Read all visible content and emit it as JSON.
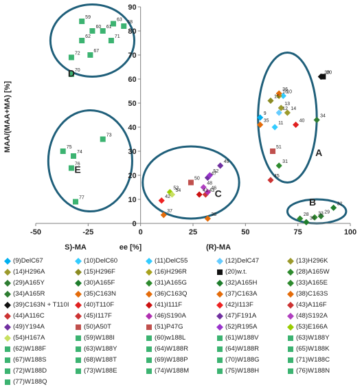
{
  "chart_data": {
    "type": "scatter",
    "title": "",
    "ylabel": "MAA/(MAA+MA) [%]",
    "xlabel_parts": [
      "S)-MA",
      "ee [%]",
      "(R)-MA"
    ],
    "xlim": [
      -50,
      100
    ],
    "ylim": [
      0,
      90
    ],
    "xticks": [
      -50,
      -25,
      0,
      25,
      50,
      75,
      100
    ],
    "yticks": [
      0,
      10,
      20,
      30,
      40,
      50,
      60,
      70,
      80,
      90
    ],
    "grid": false,
    "group_labels": [
      {
        "label": "A",
        "x": 85,
        "y": 28
      },
      {
        "label": "B",
        "x": 82,
        "y": 7.5
      },
      {
        "label": "C",
        "x": 37,
        "y": 11
      },
      {
        "label": "D",
        "x": -33,
        "y": 61
      },
      {
        "label": "E",
        "x": -30,
        "y": 21
      }
    ],
    "ellipses": [
      {
        "cx": 70,
        "cy": 44,
        "rx": 14,
        "ry": 27
      },
      {
        "cx": 84,
        "cy": 5,
        "rx": 14,
        "ry": 5
      },
      {
        "cx": 24,
        "cy": 17,
        "rx": 23,
        "ry": 15
      },
      {
        "cx": -23,
        "cy": 76,
        "rx": 20,
        "ry": 15
      },
      {
        "cx": -24,
        "cy": 26,
        "rx": 20,
        "ry": 21
      }
    ],
    "points": [
      {
        "id": "9",
        "x": 57,
        "y": 44,
        "shape": "diamond",
        "color": "#00b0f0"
      },
      {
        "id": "10",
        "x": 68,
        "y": 53,
        "shape": "diamond",
        "color": "#33ccff"
      },
      {
        "id": "11",
        "x": 64,
        "y": 40,
        "shape": "diamond",
        "color": "#33ccff"
      },
      {
        "id": "12",
        "x": 66,
        "y": 46,
        "shape": "diamond",
        "color": "#66ccff"
      },
      {
        "id": "13",
        "x": 67,
        "y": 48,
        "shape": "diamond",
        "color": "#9c9a2c"
      },
      {
        "id": "14",
        "x": 70,
        "y": 46,
        "shape": "diamond",
        "color": "#9c9a2c"
      },
      {
        "id": "15",
        "x": 62,
        "y": 51,
        "shape": "diamond",
        "color": "#8b8b22"
      },
      {
        "id": "16",
        "x": 66,
        "y": 53,
        "shape": "diamond",
        "color": "#a8a21e"
      },
      {
        "id": "20",
        "x": 87,
        "y": 61,
        "shape": "square",
        "color": "#111111"
      },
      {
        "id": "28",
        "x": 76,
        "y": 2,
        "shape": "diamond",
        "color": "#2e8b2e"
      },
      {
        "id": "29",
        "x": 86,
        "y": 3,
        "shape": "diamond",
        "color": "#2e7d32"
      },
      {
        "id": "30",
        "x": 79,
        "y": 0.5,
        "shape": "diamond",
        "color": "#1e7d2c"
      },
      {
        "id": "31",
        "x": 66,
        "y": 24,
        "shape": "diamond",
        "color": "#2e8b2e"
      },
      {
        "id": "32",
        "x": 92,
        "y": 6.5,
        "shape": "diamond",
        "color": "#1e7d2c"
      },
      {
        "id": "33",
        "x": 83,
        "y": 2.5,
        "shape": "diamond",
        "color": "#2e8b2e"
      },
      {
        "id": "34",
        "x": 84,
        "y": 43,
        "shape": "diamond",
        "color": "#2e7d32"
      },
      {
        "id": "35",
        "x": 57,
        "y": 41,
        "shape": "diamond",
        "color": "#e46c0a"
      },
      {
        "id": "36",
        "x": 66,
        "y": 54,
        "shape": "diamond",
        "color": "#e46c0a"
      },
      {
        "id": "37",
        "x": 11,
        "y": 3.5,
        "shape": "diamond",
        "color": "#e46c0a"
      },
      {
        "id": "38",
        "x": 32,
        "y": 2,
        "shape": "diamond",
        "color": "#e46c0a"
      },
      {
        "id": "39",
        "x": 86,
        "y": 61,
        "shape": "diamond",
        "color": "#111111"
      },
      {
        "id": "40",
        "x": 74,
        "y": 41,
        "shape": "diamond",
        "color": "#e02020"
      },
      {
        "id": "41",
        "x": 28,
        "y": 12,
        "shape": "diamond",
        "color": "#cc1111"
      },
      {
        "id": "42",
        "x": 10,
        "y": 9.5,
        "shape": "diamond",
        "color": "#ee2222"
      },
      {
        "id": "43",
        "x": 31,
        "y": 12,
        "shape": "diamond",
        "color": "#cc3333"
      },
      {
        "id": "45",
        "x": 62,
        "y": 18,
        "shape": "diamond",
        "color": "#cc3333"
      },
      {
        "id": "46",
        "x": 32,
        "y": 13,
        "shape": "diamond",
        "color": "#b02fb0"
      },
      {
        "id": "47",
        "x": 32,
        "y": 19,
        "shape": "diamond",
        "color": "#7030a0"
      },
      {
        "id": "48",
        "x": 30,
        "y": 15,
        "shape": "diamond",
        "color": "#b040c0"
      },
      {
        "id": "49",
        "x": 38,
        "y": 24,
        "shape": "diamond",
        "color": "#7030a0"
      },
      {
        "id": "50",
        "x": 24,
        "y": 17,
        "shape": "square",
        "color": "#c0504d"
      },
      {
        "id": "51",
        "x": 63,
        "y": 30,
        "shape": "square",
        "color": "#c0504d"
      },
      {
        "id": "52",
        "x": 33,
        "y": 20,
        "shape": "diamond",
        "color": "#9933cc"
      },
      {
        "id": "53",
        "x": 14,
        "y": 13,
        "shape": "diamond",
        "color": "#99cc00"
      },
      {
        "id": "54",
        "x": 15,
        "y": 12,
        "shape": "diamond",
        "color": "#c8e060"
      },
      {
        "id": "59",
        "x": -28,
        "y": 84,
        "shape": "square",
        "color": "#3cb371"
      },
      {
        "id": "60",
        "x": -23,
        "y": 80,
        "shape": "square",
        "color": "#3cb371"
      },
      {
        "id": "61",
        "x": -18,
        "y": 80,
        "shape": "square",
        "color": "#3cb371"
      },
      {
        "id": "62",
        "x": -28,
        "y": 76,
        "shape": "square",
        "color": "#3cb371"
      },
      {
        "id": "63",
        "x": -13,
        "y": 83,
        "shape": "square",
        "color": "#3cb371"
      },
      {
        "id": "67",
        "x": -24,
        "y": 70,
        "shape": "square",
        "color": "#3cb371"
      },
      {
        "id": "68",
        "x": -8,
        "y": 82,
        "shape": "square",
        "color": "#3cb371"
      },
      {
        "id": "70",
        "x": -33,
        "y": 62,
        "shape": "square",
        "color": "#3cb371"
      },
      {
        "id": "71",
        "x": -14,
        "y": 76,
        "shape": "square",
        "color": "#3cb371"
      },
      {
        "id": "72",
        "x": -33,
        "y": 69,
        "shape": "square",
        "color": "#3cb371"
      },
      {
        "id": "73",
        "x": -18,
        "y": 35,
        "shape": "square",
        "color": "#3cb371"
      },
      {
        "id": "74",
        "x": -32,
        "y": 28,
        "shape": "square",
        "color": "#3cb371"
      },
      {
        "id": "75",
        "x": -37,
        "y": 30,
        "shape": "square",
        "color": "#3cb371"
      },
      {
        "id": "76",
        "x": -33,
        "y": 23,
        "shape": "square",
        "color": "#3cb371"
      },
      {
        "id": "77",
        "x": -31,
        "y": 9,
        "shape": "square",
        "color": "#3cb371"
      }
    ],
    "legend": [
      {
        "label": "(9)DelC67",
        "shape": "diamond",
        "color": "#00b0f0"
      },
      {
        "label": "(10)DelC60",
        "shape": "diamond",
        "color": "#33ccff"
      },
      {
        "label": "(11)DelC55",
        "shape": "diamond",
        "color": "#33ccff"
      },
      {
        "label": "(12)DelC47",
        "shape": "diamond",
        "color": "#66ccff"
      },
      {
        "label": "(13)H296K",
        "shape": "diamond",
        "color": "#9c9a2c"
      },
      {
        "label": "(14)H296A",
        "shape": "diamond",
        "color": "#9c9a2c"
      },
      {
        "label": "(15)H296F",
        "shape": "diamond",
        "color": "#8b8b22"
      },
      {
        "label": "(16)H296R",
        "shape": "diamond",
        "color": "#a8a21e"
      },
      {
        "label": "(20)w.t.",
        "shape": "square",
        "color": "#111111"
      },
      {
        "label": "(28)A165W",
        "shape": "diamond",
        "color": "#2e8b2e"
      },
      {
        "label": "(29)A165Y",
        "shape": "diamond",
        "color": "#2e7d32"
      },
      {
        "label": "(30)A165F",
        "shape": "diamond",
        "color": "#1e7d2c"
      },
      {
        "label": "(31)A165G",
        "shape": "diamond",
        "color": "#2e8b2e"
      },
      {
        "label": "(32)A165H",
        "shape": "diamond",
        "color": "#1e7d2c"
      },
      {
        "label": "(33)A165E",
        "shape": "diamond",
        "color": "#2e8b2e"
      },
      {
        "label": "(34)A165R",
        "shape": "diamond",
        "color": "#2e7d32"
      },
      {
        "label": "(35)C163N",
        "shape": "diamond",
        "color": "#e46c0a"
      },
      {
        "label": "(36)C163Q",
        "shape": "diamond",
        "color": "#e46c0a"
      },
      {
        "label": "(37)C163A",
        "shape": "diamond",
        "color": "#e46c0a"
      },
      {
        "label": "(38)C163S",
        "shape": "diamond",
        "color": "#e46c0a"
      },
      {
        "label": "(39)C163N + T110I",
        "shape": "diamond",
        "color": "#111111"
      },
      {
        "label": "(40)T110F",
        "shape": "diamond",
        "color": "#e02020"
      },
      {
        "label": "(41)I111F",
        "shape": "diamond",
        "color": "#cc1111"
      },
      {
        "label": "(42)I113F",
        "shape": "diamond",
        "color": "#ee2222"
      },
      {
        "label": "(43)A116F",
        "shape": "diamond",
        "color": "#cc3333"
      },
      {
        "label": "(44)A116C",
        "shape": "diamond",
        "color": "#cc3333"
      },
      {
        "label": "(45)I117F",
        "shape": "diamond",
        "color": "#cc3333"
      },
      {
        "label": "(46)S190A",
        "shape": "diamond",
        "color": "#b02fb0"
      },
      {
        "label": "(47)F191A",
        "shape": "diamond",
        "color": "#7030a0"
      },
      {
        "label": "(48)S192A",
        "shape": "diamond",
        "color": "#b040c0"
      },
      {
        "label": "(49)Y194A",
        "shape": "diamond",
        "color": "#7030a0"
      },
      {
        "label": "(50)A50T",
        "shape": "square",
        "color": "#c0504d"
      },
      {
        "label": "(51)P47G",
        "shape": "square",
        "color": "#c0504d"
      },
      {
        "label": "(52)R195A",
        "shape": "diamond",
        "color": "#9933cc"
      },
      {
        "label": "(53)E166A",
        "shape": "diamond",
        "color": "#99cc00"
      },
      {
        "label": "(54)H167A",
        "shape": "diamond",
        "color": "#c8e060"
      },
      {
        "label": "(59)W188I",
        "shape": "square",
        "color": "#3cb371"
      },
      {
        "label": "(60)w188L",
        "shape": "square",
        "color": "#3cb371"
      },
      {
        "label": "(61)W188V",
        "shape": "square",
        "color": "#3cb371"
      },
      {
        "label": "(63)W188Y",
        "shape": "square",
        "color": "#3cb371"
      },
      {
        "label": "(62)W188F",
        "shape": "square",
        "color": "#3cb371"
      },
      {
        "label": "(63)W188Y",
        "shape": "square",
        "color": "#3cb371"
      },
      {
        "label": "(64)W188R",
        "shape": "square",
        "color": "#3cb371"
      },
      {
        "label": "(64)W188R",
        "shape": "square",
        "color": "#3cb371"
      },
      {
        "label": "(65)W188K",
        "shape": "square",
        "color": "#3cb371"
      },
      {
        "label": "(67)W188S",
        "shape": "square",
        "color": "#3cb371"
      },
      {
        "label": "(68)W188T",
        "shape": "square",
        "color": "#3cb371"
      },
      {
        "label": "(69)W188P",
        "shape": "square",
        "color": "#3cb371"
      },
      {
        "label": "(70)W188G",
        "shape": "square",
        "color": "#3cb371"
      },
      {
        "label": "(71)W188C",
        "shape": "square",
        "color": "#3cb371"
      },
      {
        "label": "(72)W188D",
        "shape": "square",
        "color": "#3cb371"
      },
      {
        "label": "(73)W188E",
        "shape": "square",
        "color": "#3cb371"
      },
      {
        "label": "(74)W188M",
        "shape": "square",
        "color": "#3cb371"
      },
      {
        "label": "(75)W188H",
        "shape": "square",
        "color": "#3cb371"
      },
      {
        "label": "(76)W188N",
        "shape": "square",
        "color": "#3cb371"
      },
      {
        "label": "(77)W188Q",
        "shape": "square",
        "color": "#3cb371"
      }
    ],
    "ellipse_color": "#1f5f7a"
  }
}
